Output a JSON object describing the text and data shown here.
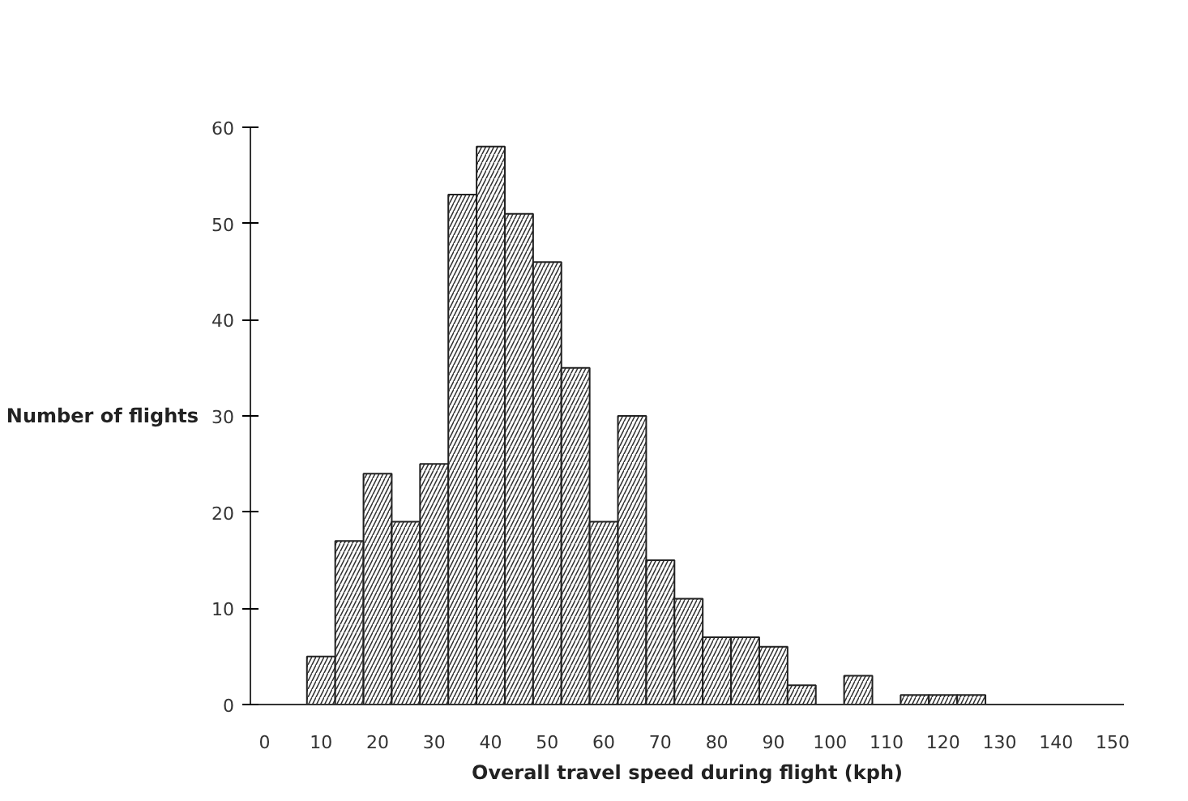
{
  "chart_data": {
    "type": "histogram",
    "xlabel": "Overall travel speed during flight (kph)",
    "ylabel": "Number of flights",
    "bins": [
      7.5,
      12.5,
      17.5,
      22.5,
      27.5,
      32.5,
      37.5,
      42.5,
      47.5,
      52.5,
      57.5,
      62.5,
      67.5,
      72.5,
      77.5,
      82.5,
      87.5,
      92.5,
      97.5,
      102.5,
      107.5,
      112.5,
      117.5,
      122.5,
      127.5
    ],
    "values": [
      5,
      17,
      24,
      19,
      25,
      53,
      58,
      51,
      46,
      35,
      19,
      30,
      15,
      11,
      7,
      7,
      6,
      2,
      0,
      3,
      0,
      1,
      1,
      1
    ],
    "color": "#ffffff",
    "xlim": [
      -2.5,
      152
    ],
    "xticks": [
      0,
      10,
      20,
      30,
      40,
      50,
      60,
      70,
      80,
      90,
      100,
      110,
      120,
      130,
      140,
      150
    ],
    "ylim": [
      0,
      60
    ],
    "yticks": [
      0,
      10,
      20,
      30,
      40,
      50,
      60
    ],
    "grid": false
  }
}
